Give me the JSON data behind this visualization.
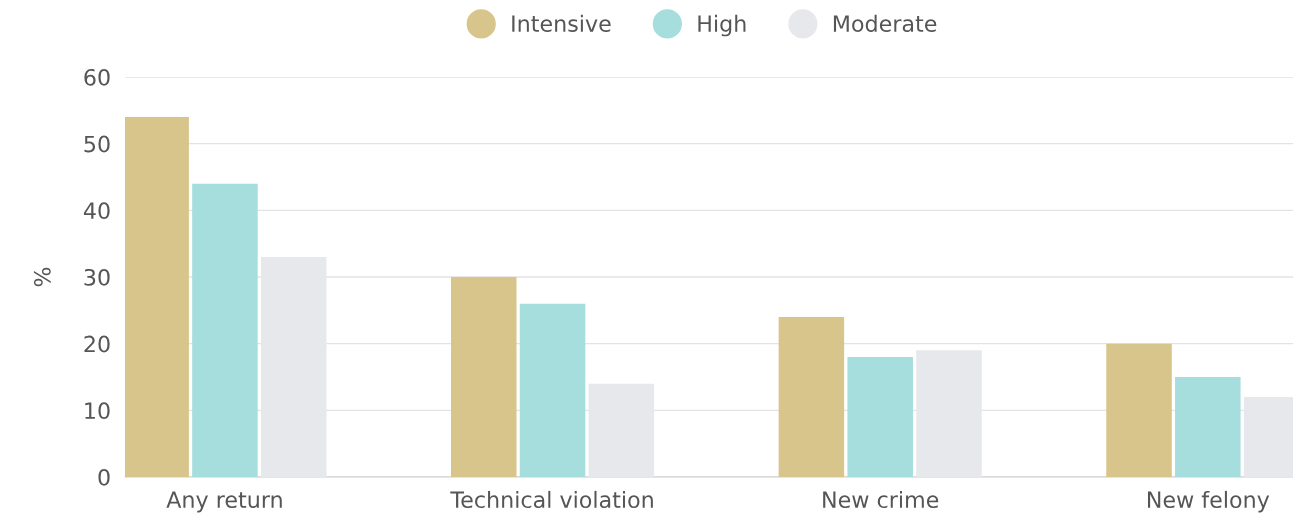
{
  "chart_data": {
    "type": "bar",
    "ylabel": "%",
    "categories": [
      "Any return",
      "Technical violation",
      "New crime",
      "New felony"
    ],
    "series": [
      {
        "name": "Intensive",
        "color": "#d8c58b",
        "values": [
          54,
          30,
          24,
          20
        ]
      },
      {
        "name": "High",
        "color": "#a5dedd",
        "values": [
          44,
          26,
          18,
          15
        ]
      },
      {
        "name": "Moderate",
        "color": "#e7e8ec",
        "values": [
          33,
          14,
          19,
          12
        ]
      }
    ],
    "ylim": [
      0,
      60
    ],
    "yticks": [
      0,
      10,
      20,
      30,
      40,
      50,
      60
    ],
    "grid": "y",
    "legend": "top"
  }
}
